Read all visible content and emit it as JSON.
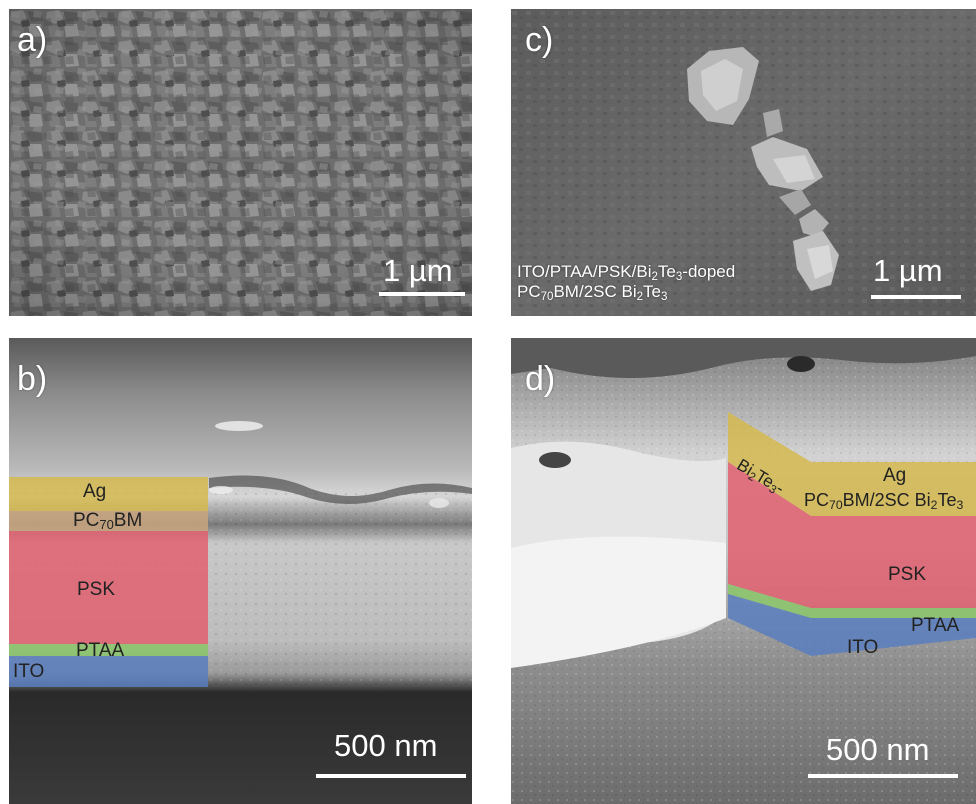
{
  "panels": {
    "a": {
      "label": "a)",
      "scale": "1 µm"
    },
    "b": {
      "label": "b)",
      "scale": "500 nm",
      "layers": {
        "ag": "Ag",
        "pcbm_base": "PC",
        "pcbm_sub": "70",
        "pcbm_tail": "BM",
        "psk": "PSK",
        "ptaa": "PTAA",
        "ito": "ITO"
      }
    },
    "c": {
      "label": "c)",
      "scale": "1 µm",
      "caption": {
        "line1_a": "ITO/PTAA/PSK/Bi",
        "line1_sub1": "2",
        "line1_b": "Te",
        "line1_sub2": "3",
        "line1_c": "-doped",
        "line2_a": "PC",
        "line2_sub1": "70",
        "line2_b": "BM/2SC Bi",
        "line2_sub2": "2",
        "line2_c": "Te",
        "line2_sub3": "3"
      }
    },
    "d": {
      "label": "d)",
      "scale": "500 nm",
      "layers": {
        "bite_a": "Bi",
        "bite_sub1": "2",
        "bite_b": "Te",
        "bite_sub2": "3",
        "bite_c": "-",
        "ag": "Ag",
        "pcbm_a": "PC",
        "pcbm_sub": "70",
        "pcbm_b": "BM/2SC Bi",
        "pcbm_sub2": "2",
        "pcbm_c": "Te",
        "pcbm_sub3": "3",
        "psk": "PSK",
        "ptaa": "PTAA",
        "ito": "ITO"
      }
    }
  },
  "colors": {
    "ag_layer": "#d4b84a",
    "pcbm_layer": "#c9a47c",
    "psk_layer": "#e0606e",
    "ptaa_layer": "#8cc46c",
    "ito_layer": "#5a7ec0",
    "scalebar": "#ffffff"
  }
}
